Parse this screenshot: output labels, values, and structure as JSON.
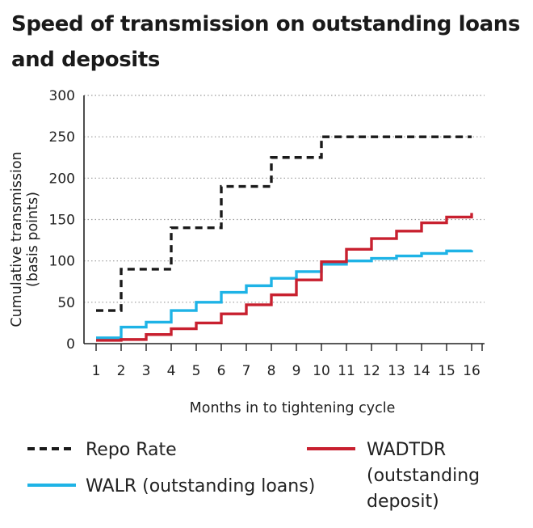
{
  "chart_data": {
    "type": "line",
    "title": "Speed of transmission on outstanding loans and deposits",
    "xlabel": "Months in to tightening cycle",
    "ylabel": "Cumulative transmission (basis points)",
    "ylabel_lines": [
      "Cumulative transmission",
      "(basis points)"
    ],
    "x": [
      1,
      2,
      3,
      4,
      5,
      6,
      7,
      8,
      9,
      10,
      11,
      12,
      13,
      14,
      15,
      16
    ],
    "x_ticks": [
      "1",
      "2",
      "3",
      "4",
      "5",
      "6",
      "7",
      "8",
      "9",
      "10",
      "11",
      "12",
      "13",
      "14",
      "15",
      "16"
    ],
    "y_ticks": [
      "0",
      "50",
      "100",
      "150",
      "200",
      "250",
      "300"
    ],
    "ylim": [
      0,
      300
    ],
    "xlim": [
      1,
      16
    ],
    "grid": "horizontal dotted",
    "step": true,
    "series": [
      {
        "name": "Repo Rate",
        "color": "#1a1a1a",
        "style": "dashed",
        "values": [
          40,
          90,
          90,
          140,
          140,
          190,
          190,
          225,
          225,
          250,
          250,
          250,
          250,
          250,
          250,
          250
        ]
      },
      {
        "name": "WALR (outstanding loans)",
        "color": "#1eb3e6",
        "style": "solid",
        "values": [
          7,
          20,
          26,
          40,
          50,
          62,
          70,
          79,
          87,
          96,
          100,
          103,
          106,
          109,
          112,
          113
        ]
      },
      {
        "name": "WADTDR (outstanding deposit)",
        "name_lines": [
          "WADTDR",
          "(outstanding",
          "deposit)"
        ],
        "color": "#c8202f",
        "style": "solid",
        "values": [
          4,
          5,
          11,
          18,
          25,
          36,
          47,
          59,
          77,
          99,
          114,
          127,
          136,
          146,
          153,
          158
        ]
      }
    ],
    "legend": "bottom"
  }
}
